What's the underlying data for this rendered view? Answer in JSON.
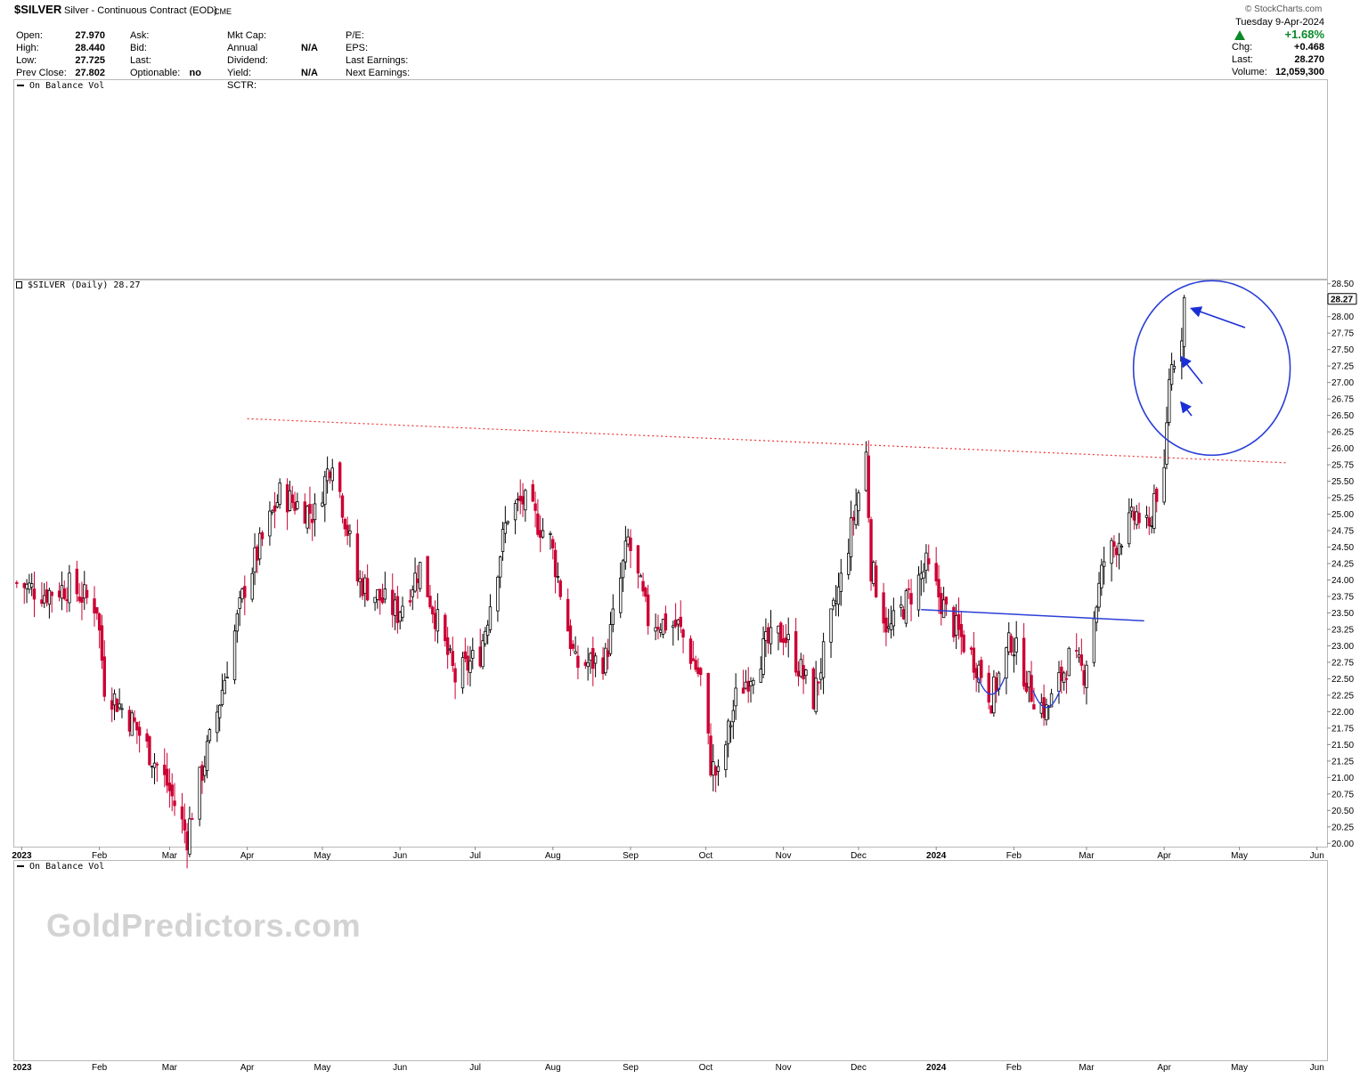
{
  "header": {
    "symbol": "$SILVER",
    "description": "Silver - Continuous Contract (EOD)",
    "exchange": "CME",
    "branding": "© StockCharts.com",
    "date": "Tuesday  9-Apr-2024",
    "change_pct": "+1.68%",
    "quote_rows": [
      {
        "label": "Chg:",
        "value": "+0.468"
      },
      {
        "label": "Last:",
        "value": "28.270"
      },
      {
        "label": "Volume:",
        "value": "12,059,300"
      }
    ],
    "col1": [
      {
        "label": "Open:",
        "value": "27.970"
      },
      {
        "label": "High:",
        "value": "28.440"
      },
      {
        "label": "Low:",
        "value": "27.725"
      },
      {
        "label": "Prev Close:",
        "value": "27.802"
      }
    ],
    "col2": [
      {
        "label": "Ask:",
        "value": ""
      },
      {
        "label": "Bid:",
        "value": ""
      },
      {
        "label": "Last:",
        "value": ""
      },
      {
        "label": "Optionable:",
        "value": "no"
      }
    ],
    "col3": [
      {
        "label": "Mkt Cap:",
        "value": ""
      },
      {
        "label": "Annual Dividend:",
        "value": "N/A"
      },
      {
        "label": "Yield:",
        "value": "N/A"
      },
      {
        "label": "SCTR:",
        "value": ""
      }
    ],
    "col4": [
      {
        "label": "P/E:",
        "value": ""
      },
      {
        "label": "EPS:",
        "value": ""
      },
      {
        "label": "Last Earnings:",
        "value": ""
      },
      {
        "label": "Next Earnings:",
        "value": ""
      }
    ]
  },
  "panels": {
    "top_label": "On Balance Vol",
    "price_label": "$SILVER (Daily) 28.27",
    "bottom_label": "On Balance Vol"
  },
  "watermark": "GoldPredictors.com",
  "chart_data": {
    "type": "candlestick",
    "title": "$SILVER (Daily) 28.27",
    "last_price": 28.27,
    "last_price_label": "28.27",
    "ylim": [
      19.95,
      28.55
    ],
    "y_ticks": [
      "28.50",
      "28.00",
      "27.75",
      "27.50",
      "27.25",
      "27.00",
      "26.75",
      "26.50",
      "26.25",
      "26.00",
      "25.75",
      "25.50",
      "25.25",
      "25.00",
      "24.75",
      "24.50",
      "24.25",
      "24.00",
      "23.75",
      "23.50",
      "23.25",
      "23.00",
      "22.75",
      "22.50",
      "22.25",
      "22.00",
      "21.75",
      "21.50",
      "21.25",
      "21.00",
      "20.75",
      "20.50",
      "20.25",
      "20.00"
    ],
    "x_ticks": [
      {
        "label": "2023",
        "date": "2023-01-01",
        "bold": true
      },
      {
        "label": "Feb",
        "date": "2023-02-01"
      },
      {
        "label": "Mar",
        "date": "2023-03-01"
      },
      {
        "label": "Apr",
        "date": "2023-04-01"
      },
      {
        "label": "May",
        "date": "2023-05-01"
      },
      {
        "label": "Jun",
        "date": "2023-06-01"
      },
      {
        "label": "Jul",
        "date": "2023-07-01"
      },
      {
        "label": "Aug",
        "date": "2023-08-01"
      },
      {
        "label": "Sep",
        "date": "2023-09-01"
      },
      {
        "label": "Oct",
        "date": "2023-10-01"
      },
      {
        "label": "Nov",
        "date": "2023-11-01"
      },
      {
        "label": "Dec",
        "date": "2023-12-01"
      },
      {
        "label": "2024",
        "date": "2024-01-01",
        "bold": true
      },
      {
        "label": "Feb",
        "date": "2024-02-01"
      },
      {
        "label": "Mar",
        "date": "2024-03-01"
      },
      {
        "label": "Apr",
        "date": "2024-04-01"
      },
      {
        "label": "May",
        "date": "2024-05-01"
      },
      {
        "label": "Jun",
        "date": "2024-06-01"
      }
    ],
    "x_range": [
      "2022-12-29",
      "2024-06-05"
    ],
    "up_color": "#000000",
    "down_color": "#cc0033",
    "series": [
      {
        "name": "close",
        "points": [
          [
            "2022-12-30",
            23.95
          ],
          [
            "2023-01-10",
            23.8
          ],
          [
            "2023-01-20",
            23.9
          ],
          [
            "2023-01-31",
            23.6
          ],
          [
            "2023-02-03",
            22.4
          ],
          [
            "2023-02-15",
            21.8
          ],
          [
            "2023-02-28",
            20.9
          ],
          [
            "2023-03-08",
            20.1
          ],
          [
            "2023-03-10",
            20.5
          ],
          [
            "2023-03-20",
            22.0
          ],
          [
            "2023-03-31",
            23.9
          ],
          [
            "2023-04-14",
            25.3
          ],
          [
            "2023-04-28",
            25.0
          ],
          [
            "2023-05-05",
            25.9
          ],
          [
            "2023-05-15",
            24.0
          ],
          [
            "2023-05-31",
            23.5
          ],
          [
            "2023-06-09",
            24.2
          ],
          [
            "2023-06-23",
            22.5
          ],
          [
            "2023-07-03",
            22.9
          ],
          [
            "2023-07-14",
            25.0
          ],
          [
            "2023-07-20",
            25.2
          ],
          [
            "2023-07-31",
            24.6
          ],
          [
            "2023-08-10",
            22.7
          ],
          [
            "2023-08-22",
            22.8
          ],
          [
            "2023-08-31",
            24.6
          ],
          [
            "2023-09-08",
            23.4
          ],
          [
            "2023-09-20",
            23.3
          ],
          [
            "2023-09-29",
            22.5
          ],
          [
            "2023-10-03",
            21.2
          ],
          [
            "2023-10-06",
            21.0
          ],
          [
            "2023-10-13",
            22.2
          ],
          [
            "2023-10-25",
            23.0
          ],
          [
            "2023-11-01",
            23.2
          ],
          [
            "2023-11-13",
            22.2
          ],
          [
            "2023-11-24",
            24.0
          ],
          [
            "2023-12-04",
            25.9
          ],
          [
            "2023-12-06",
            24.2
          ],
          [
            "2023-12-13",
            23.2
          ],
          [
            "2023-12-28",
            24.2
          ],
          [
            "2024-01-05",
            23.5
          ],
          [
            "2024-01-19",
            22.6
          ],
          [
            "2024-01-23",
            22.2
          ],
          [
            "2024-01-31",
            23.1
          ],
          [
            "2024-02-08",
            22.3
          ],
          [
            "2024-02-14",
            22.0
          ],
          [
            "2024-02-23",
            22.8
          ],
          [
            "2024-02-29",
            22.6
          ],
          [
            "2024-03-08",
            24.3
          ],
          [
            "2024-03-21",
            25.0
          ],
          [
            "2024-03-26",
            24.7
          ],
          [
            "2024-03-28",
            25.3
          ],
          [
            "2024-04-01",
            25.5
          ],
          [
            "2024-04-03",
            27.1
          ],
          [
            "2024-04-05",
            27.4
          ],
          [
            "2024-04-08",
            27.8
          ],
          [
            "2024-04-09",
            28.27
          ]
        ]
      }
    ],
    "annotations": [
      {
        "kind": "resistance-line",
        "color": "#ee3333",
        "from": [
          "2023-04-01",
          26.45
        ],
        "to": [
          "2024-05-20",
          25.78
        ]
      },
      {
        "kind": "neckline",
        "color": "#2b3fd6",
        "from": [
          "2023-12-26",
          23.55
        ],
        "to": [
          "2024-03-24",
          23.38
        ]
      },
      {
        "kind": "circle",
        "color": "#2b3fd6",
        "center": [
          "2024-04-20",
          27.22
        ]
      },
      {
        "kind": "arrows",
        "color": "#1a2fd6",
        "count": 3
      }
    ]
  }
}
